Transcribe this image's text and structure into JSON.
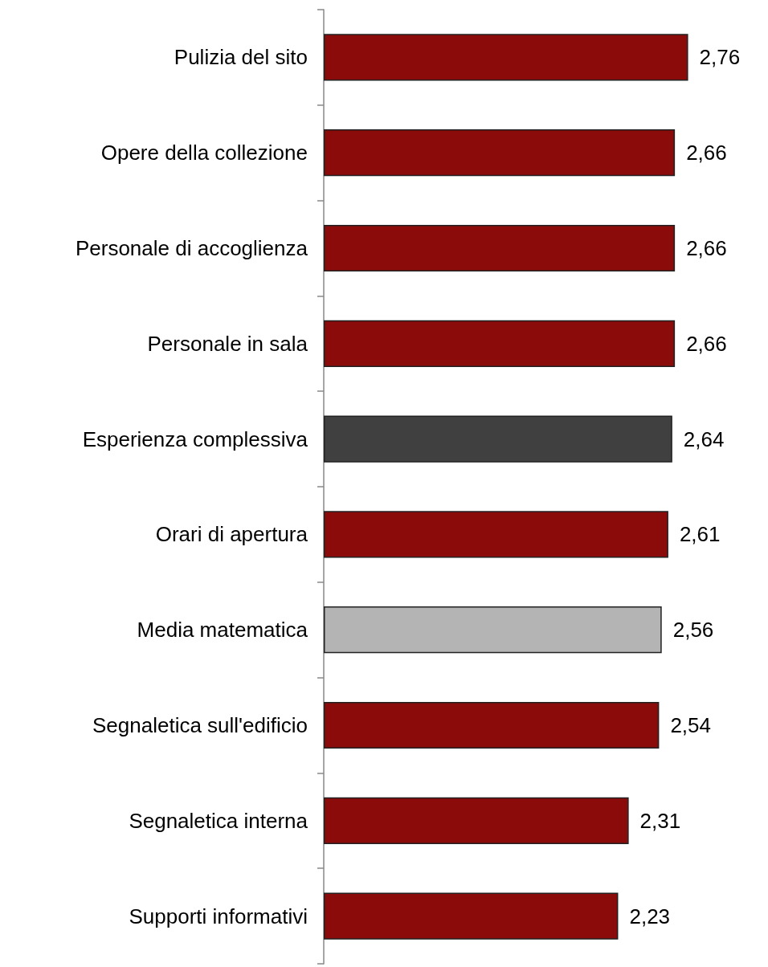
{
  "chart_data": {
    "type": "bar",
    "orientation": "horizontal",
    "categories": [
      "Pulizia del sito",
      "Opere della collezione",
      "Personale di accoglienza",
      "Personale in sala",
      "Esperienza complessiva",
      "Orari di apertura",
      "Media matematica",
      "Segnaletica sull'edificio",
      "Segnaletica interna",
      "Supporti informativi"
    ],
    "values": [
      2.76,
      2.66,
      2.66,
      2.66,
      2.64,
      2.61,
      2.56,
      2.54,
      2.31,
      2.23
    ],
    "colors": [
      "#8b0a0a",
      "#8b0a0a",
      "#8b0a0a",
      "#8b0a0a",
      "#404040",
      "#8b0a0a",
      "#b4b4b4",
      "#8b0a0a",
      "#8b0a0a",
      "#8b0a0a"
    ],
    "value_labels": [
      "2,76",
      "2,66",
      "2,66",
      "2,66",
      "2,64",
      "2,61",
      "2,56",
      "2,54",
      "2,31",
      "2,23"
    ]
  }
}
